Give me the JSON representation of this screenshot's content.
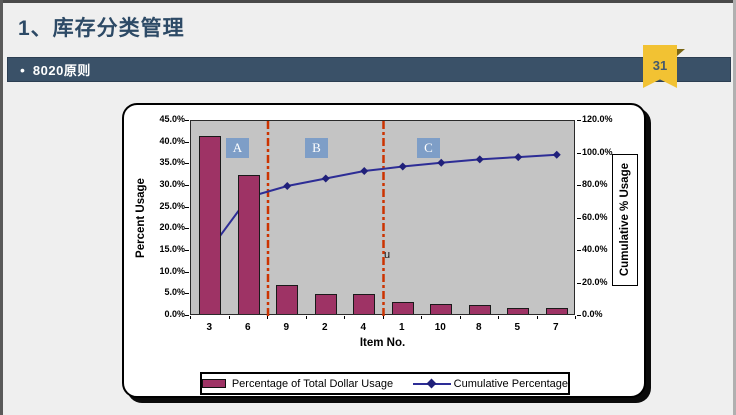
{
  "slide": {
    "title": "1、库存分类管理",
    "subtitle_bullet": "•",
    "subtitle": "8020原则",
    "page_number": "31"
  },
  "colors": {
    "title_text": "#2D4A66",
    "subtitle_bar": "#3A5168",
    "page_tag": "#F2C233",
    "slide_background": "#EFEFEF",
    "card_background": "#FFFFFF"
  },
  "chart_data": {
    "type": "pareto (bar + line combo)",
    "title": "",
    "categories": [
      "3",
      "6",
      "9",
      "2",
      "4",
      "1",
      "10",
      "8",
      "5",
      "7"
    ],
    "series": [
      {
        "name": "Percentage of Total Dollar Usage",
        "kind": "bar",
        "axis": "left",
        "color": "#9E3365",
        "values": [
          41.1,
          32.1,
          6.8,
          4.6,
          4.6,
          2.8,
          2.3,
          2.1,
          1.4,
          1.4
        ]
      },
      {
        "name": "Cumulative Percentage",
        "kind": "line",
        "axis": "right",
        "color": "#2D2D96",
        "marker": "diamond",
        "values": [
          41.1,
          73.2,
          80.0,
          84.6,
          89.2,
          92.0,
          94.3,
          96.4,
          97.8,
          99.2
        ]
      }
    ],
    "x_axis": {
      "title": "Item No."
    },
    "left_axis": {
      "title": "Percent Usage",
      "min": 0,
      "max": 45,
      "step": 5,
      "unit": "%"
    },
    "right_axis": {
      "title": "Cumulative % Usage",
      "min": 0,
      "max": 120,
      "step": 20,
      "unit": "%"
    },
    "zones": [
      {
        "label": "A"
      },
      {
        "label": "B"
      },
      {
        "label": "C"
      }
    ],
    "zone_dividers_after_category": [
      2,
      5
    ],
    "divider_color": "#CC3300",
    "plot_background": "#C4C4C4",
    "stray_label": "u",
    "legend_position": "bottom",
    "grid": false
  }
}
